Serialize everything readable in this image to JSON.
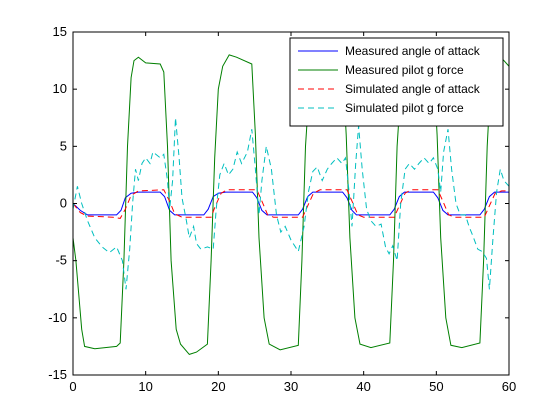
{
  "chart_data": {
    "type": "line",
    "title": "",
    "xlabel": "",
    "ylabel": "",
    "xlim": [
      0,
      60
    ],
    "ylim": [
      -15,
      15
    ],
    "x_ticks": [
      0,
      10,
      20,
      30,
      40,
      50,
      60
    ],
    "y_ticks": [
      -15,
      -10,
      -5,
      0,
      5,
      10,
      15
    ],
    "grid": false,
    "legend_position": "top-right",
    "series": [
      {
        "name": "Measured angle of attack",
        "color": "#0000ff",
        "style": "solid",
        "points": [
          [
            0,
            0
          ],
          [
            1,
            -0.6
          ],
          [
            2,
            -1.0
          ],
          [
            5,
            -1.0
          ],
          [
            6,
            -1.0
          ],
          [
            6.6,
            -0.6
          ],
          [
            7.2,
            0.5
          ],
          [
            8,
            0.9
          ],
          [
            9,
            1.0
          ],
          [
            12,
            1.0
          ],
          [
            12.6,
            0.6
          ],
          [
            13.3,
            -0.6
          ],
          [
            14,
            -1.0
          ],
          [
            18,
            -1.0
          ],
          [
            18.6,
            -0.5
          ],
          [
            19.3,
            0.6
          ],
          [
            20,
            0.9
          ],
          [
            21,
            1.0
          ],
          [
            24.7,
            1.0
          ],
          [
            25.3,
            0.5
          ],
          [
            26,
            -0.6
          ],
          [
            26.7,
            -1.0
          ],
          [
            31,
            -1.0
          ],
          [
            31.6,
            -0.5
          ],
          [
            32.3,
            0.6
          ],
          [
            33,
            1.0
          ],
          [
            37.1,
            1.0
          ],
          [
            37.7,
            0.5
          ],
          [
            38.4,
            -0.6
          ],
          [
            39,
            -1.0
          ],
          [
            43.6,
            -1.0
          ],
          [
            44.2,
            -0.5
          ],
          [
            44.9,
            0.6
          ],
          [
            45.6,
            1.0
          ],
          [
            49.6,
            1.0
          ],
          [
            50.2,
            0.5
          ],
          [
            50.9,
            -0.6
          ],
          [
            51.6,
            -1.0
          ],
          [
            56,
            -1.0
          ],
          [
            56.6,
            -0.5
          ],
          [
            57.3,
            0.6
          ],
          [
            58,
            1.0
          ],
          [
            60,
            1.0
          ]
        ]
      },
      {
        "name": "Measured pilot g force",
        "color": "#007f00",
        "style": "solid",
        "points": [
          [
            0,
            -3
          ],
          [
            0.4,
            -5
          ],
          [
            0.8,
            -8
          ],
          [
            1.2,
            -11
          ],
          [
            1.6,
            -12.5
          ],
          [
            3,
            -12.7
          ],
          [
            6,
            -12.5
          ],
          [
            6.5,
            -12.2
          ],
          [
            7.0,
            -5
          ],
          [
            7.5,
            5
          ],
          [
            8,
            11
          ],
          [
            8.4,
            12.5
          ],
          [
            9,
            12.8
          ],
          [
            10,
            12.3
          ],
          [
            12,
            12.2
          ],
          [
            12.5,
            11.5
          ],
          [
            13,
            5
          ],
          [
            13.5,
            -5
          ],
          [
            14.2,
            -11
          ],
          [
            14.8,
            -12.3
          ],
          [
            16,
            -13.2
          ],
          [
            17,
            -13.0
          ],
          [
            18.5,
            -12.3
          ],
          [
            19.0,
            -5
          ],
          [
            19.5,
            4
          ],
          [
            20,
            10
          ],
          [
            20.6,
            12.0
          ],
          [
            21.5,
            13.0
          ],
          [
            22.5,
            12.8
          ],
          [
            24.6,
            12.2
          ],
          [
            25.1,
            6
          ],
          [
            25.6,
            -3
          ],
          [
            26.3,
            -10
          ],
          [
            27,
            -12.3
          ],
          [
            28.5,
            -12.8
          ],
          [
            31,
            -12.4
          ],
          [
            31.5,
            -5
          ],
          [
            32,
            5
          ],
          [
            32.6,
            11
          ],
          [
            33.4,
            12.2
          ],
          [
            35,
            12.3
          ],
          [
            37.1,
            12.0
          ],
          [
            37.6,
            6
          ],
          [
            38.1,
            -3
          ],
          [
            38.8,
            -10
          ],
          [
            39.5,
            -12.3
          ],
          [
            41,
            -12.6
          ],
          [
            43.6,
            -12.2
          ],
          [
            44.1,
            -5
          ],
          [
            44.6,
            5
          ],
          [
            45.2,
            11
          ],
          [
            46,
            12.3
          ],
          [
            47.5,
            12.4
          ],
          [
            49.6,
            12.0
          ],
          [
            50.1,
            6
          ],
          [
            50.6,
            -3
          ],
          [
            51.3,
            -10
          ],
          [
            52,
            -12.4
          ],
          [
            53.5,
            -12.6
          ],
          [
            56,
            -12.2
          ],
          [
            56.5,
            -5
          ],
          [
            57,
            5
          ],
          [
            57.5,
            11
          ],
          [
            58.2,
            13.2
          ],
          [
            59.3,
            12.5
          ],
          [
            60,
            12.0
          ]
        ]
      },
      {
        "name": "Simulated angle of attack",
        "color": "#ff0000",
        "style": "dashed",
        "points": [
          [
            0,
            0
          ],
          [
            1,
            -0.8
          ],
          [
            2,
            -1.1
          ],
          [
            5.5,
            -1.2
          ],
          [
            6.5,
            -1.3
          ],
          [
            7.2,
            -0.5
          ],
          [
            8,
            0.7
          ],
          [
            9,
            1.1
          ],
          [
            12.5,
            1.2
          ],
          [
            13.3,
            0.2
          ],
          [
            14,
            -0.9
          ],
          [
            15,
            -1.2
          ],
          [
            19,
            -1.2
          ],
          [
            19.6,
            -0.2
          ],
          [
            20.4,
            0.9
          ],
          [
            21.2,
            1.2
          ],
          [
            25.3,
            1.2
          ],
          [
            26,
            0.2
          ],
          [
            26.8,
            -1.0
          ],
          [
            27.6,
            -1.2
          ],
          [
            31.6,
            -1.2
          ],
          [
            32.3,
            -0.2
          ],
          [
            33.1,
            0.9
          ],
          [
            34,
            1.2
          ],
          [
            37.7,
            1.2
          ],
          [
            38.4,
            0.2
          ],
          [
            39.2,
            -1.0
          ],
          [
            40,
            -1.2
          ],
          [
            44.2,
            -1.2
          ],
          [
            44.9,
            -0.2
          ],
          [
            45.7,
            0.9
          ],
          [
            46.5,
            1.2
          ],
          [
            50.2,
            1.2
          ],
          [
            50.9,
            0.2
          ],
          [
            51.7,
            -1.0
          ],
          [
            52.5,
            -1.2
          ],
          [
            56.6,
            -1.2
          ],
          [
            57.3,
            -0.2
          ],
          [
            58.1,
            0.9
          ],
          [
            59,
            1.1
          ],
          [
            60,
            1.1
          ]
        ]
      },
      {
        "name": "Simulated pilot g force",
        "color": "#00bfbf",
        "style": "dashed",
        "points": [
          [
            0,
            -0.5
          ],
          [
            0.6,
            1.5
          ],
          [
            1.2,
            0
          ],
          [
            2,
            -1.5
          ],
          [
            3,
            -3
          ],
          [
            4,
            -3.8
          ],
          [
            5,
            -4.3
          ],
          [
            6,
            -3.8
          ],
          [
            6.8,
            -5
          ],
          [
            7.3,
            -7.5
          ],
          [
            7.8,
            -4
          ],
          [
            8.2,
            0
          ],
          [
            8.6,
            3
          ],
          [
            9,
            2
          ],
          [
            9.5,
            3.5
          ],
          [
            10,
            4
          ],
          [
            10.6,
            3.5
          ],
          [
            11,
            4.5
          ],
          [
            12,
            4.0
          ],
          [
            12.5,
            4.3
          ],
          [
            13,
            2
          ],
          [
            13.3,
            -0.5
          ],
          [
            13.7,
            2
          ],
          [
            14.1,
            7.5
          ],
          [
            14.6,
            4
          ],
          [
            15,
            0.5
          ],
          [
            15.6,
            -1.5
          ],
          [
            16,
            -3
          ],
          [
            16.6,
            -2
          ],
          [
            17,
            -3.5
          ],
          [
            17.6,
            -4
          ],
          [
            18.5,
            -3.8
          ],
          [
            19.3,
            -4
          ],
          [
            19.7,
            -0.5
          ],
          [
            20.2,
            2.5
          ],
          [
            20.8,
            3.5
          ],
          [
            21.4,
            2.5
          ],
          [
            22,
            3
          ],
          [
            22.6,
            4.5
          ],
          [
            23.2,
            3.5
          ],
          [
            24,
            4.5
          ],
          [
            24.6,
            6.5
          ],
          [
            25.1,
            3
          ],
          [
            25.6,
            -1
          ],
          [
            26,
            2
          ],
          [
            26.6,
            5
          ],
          [
            27.3,
            3
          ],
          [
            28,
            -1
          ],
          [
            28.6,
            -2.5
          ],
          [
            29.2,
            -2
          ],
          [
            30,
            -3.2
          ],
          [
            31,
            -4.2
          ],
          [
            31.8,
            -2
          ],
          [
            32.4,
            1
          ],
          [
            33,
            2.8
          ],
          [
            33.6,
            3.2
          ],
          [
            34.3,
            2
          ],
          [
            35,
            3
          ],
          [
            35.6,
            3.5
          ],
          [
            36.3,
            4
          ],
          [
            37,
            3.5
          ],
          [
            37.5,
            4
          ],
          [
            38,
            1
          ],
          [
            38.4,
            -2
          ],
          [
            38.9,
            3.5
          ],
          [
            39.3,
            6.8
          ],
          [
            39.8,
            3
          ],
          [
            40.4,
            -0.5
          ],
          [
            41,
            -1.5
          ],
          [
            41.7,
            -2
          ],
          [
            42.4,
            -1.8
          ],
          [
            43,
            -3.8
          ],
          [
            43.5,
            -4.4
          ],
          [
            44,
            -3.7
          ],
          [
            44.6,
            -5
          ],
          [
            45.1,
            0
          ],
          [
            45.7,
            3
          ],
          [
            46.3,
            3.5
          ],
          [
            47,
            3
          ],
          [
            47.6,
            3.5
          ],
          [
            48.3,
            4
          ],
          [
            49,
            3.5
          ],
          [
            49.6,
            4
          ],
          [
            50.2,
            3
          ],
          [
            50.6,
            1
          ],
          [
            51,
            4.5
          ],
          [
            51.6,
            6.5
          ],
          [
            52.1,
            3
          ],
          [
            52.7,
            0
          ],
          [
            53.3,
            -1
          ],
          [
            54,
            -1
          ],
          [
            54.5,
            -2
          ],
          [
            55,
            -2.8
          ],
          [
            55.7,
            -4
          ],
          [
            56.3,
            -4.2
          ],
          [
            56.9,
            -4.8
          ],
          [
            57.3,
            -7.5
          ],
          [
            57.8,
            -3
          ],
          [
            58.3,
            1
          ],
          [
            58.8,
            3
          ],
          [
            59.3,
            2
          ],
          [
            60,
            1.5
          ]
        ]
      }
    ]
  }
}
